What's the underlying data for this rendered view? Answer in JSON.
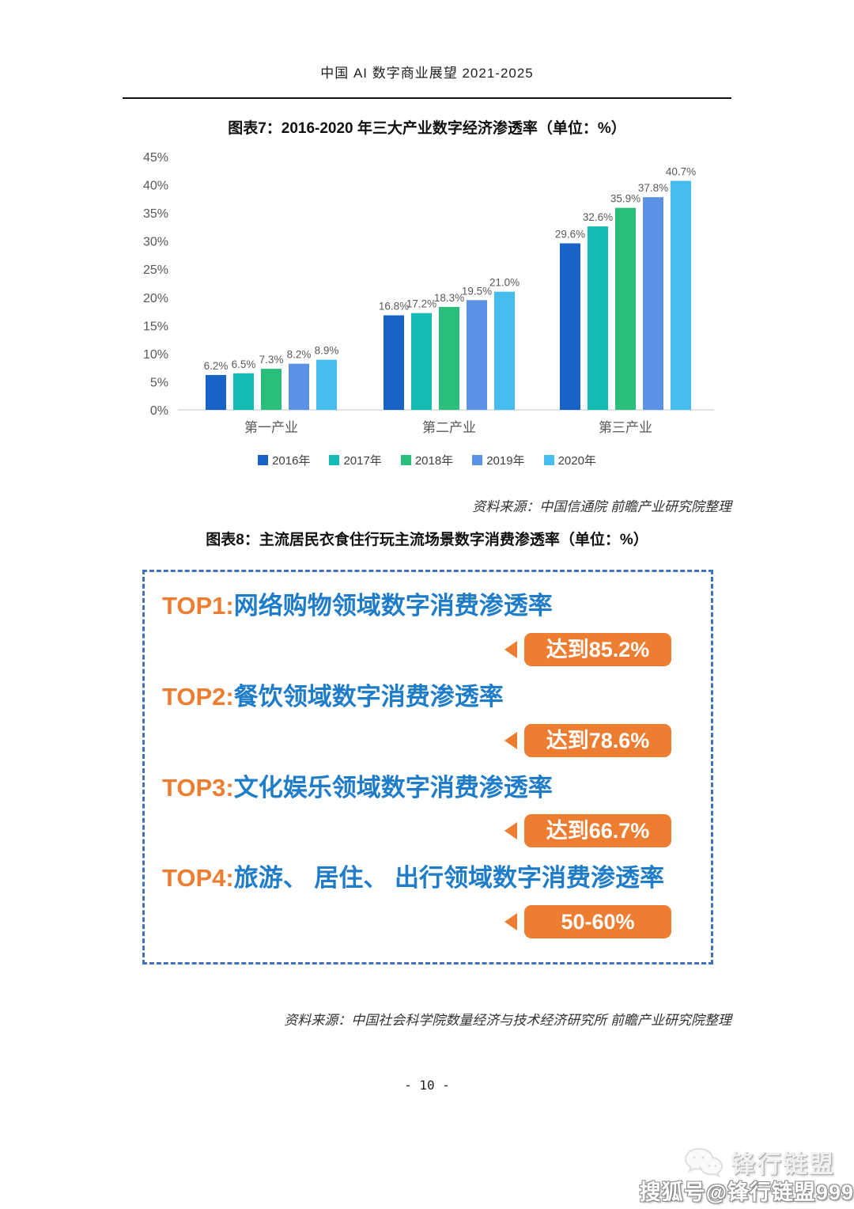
{
  "header": {
    "title": "中国 AI 数字商业展望 2021-2025"
  },
  "figure7": {
    "title": "图表7：2016-2020 年三大产业数字经济渗透率（单位：%）",
    "source": "资料来源：中国信通院 前瞻产业研究院整理"
  },
  "chart_data": {
    "type": "bar",
    "title": "图表7：2016-2020 年三大产业数字经济渗透率（单位：%）",
    "categories": [
      "第一产业",
      "第二产业",
      "第三产业"
    ],
    "series": [
      {
        "name": "2016年",
        "color": "#1A63C6",
        "values": [
          6.2,
          16.8,
          29.6
        ]
      },
      {
        "name": "2017年",
        "color": "#12BCB4",
        "values": [
          6.5,
          17.2,
          32.6
        ]
      },
      {
        "name": "2018年",
        "color": "#29BE7C",
        "values": [
          7.3,
          18.3,
          35.9
        ]
      },
      {
        "name": "2019年",
        "color": "#5B92E5",
        "values": [
          8.2,
          19.5,
          37.8
        ]
      },
      {
        "name": "2020年",
        "color": "#46BCEF",
        "values": [
          8.9,
          21.0,
          40.7
        ]
      }
    ],
    "ylim": [
      0,
      45
    ],
    "ytick_step": 5,
    "ytick_suffix": "%",
    "grid": false,
    "legend_position": "bottom",
    "data_labels": true,
    "axis_label_color": "#595959",
    "baseline_color": "#d9d9d9"
  },
  "figure8": {
    "title": "图表8：主流居民衣食住行玩主流场景数字消费渗透率（单位：%）",
    "items": [
      {
        "rank": "TOP1:",
        "label": "网络购物领域数字消费渗透率",
        "badge": "达到85.2%"
      },
      {
        "rank": "TOP2:",
        "label": "餐饮领域数字消费渗透率",
        "badge": "达到78.6%"
      },
      {
        "rank": "TOP3:",
        "label": "文化娱乐领域数字消费渗透率",
        "badge": "达到66.7%"
      },
      {
        "rank": "TOP4:",
        "label": "旅游、 居住、 出行领域数字消费渗透率",
        "badge": "50-60%"
      }
    ],
    "source": "资料来源：中国社会科学院数量经济与技术经济研究所 前瞻产业研究院整理",
    "colors": {
      "accent_orange": "#ED7D31",
      "text_blue": "#1F7CC9",
      "border_blue": "#4273b8"
    }
  },
  "footer": {
    "page_number": "- 10 -"
  },
  "watermark": {
    "brand": "锋行链盟",
    "account": "搜狐号@锋行链盟999"
  }
}
